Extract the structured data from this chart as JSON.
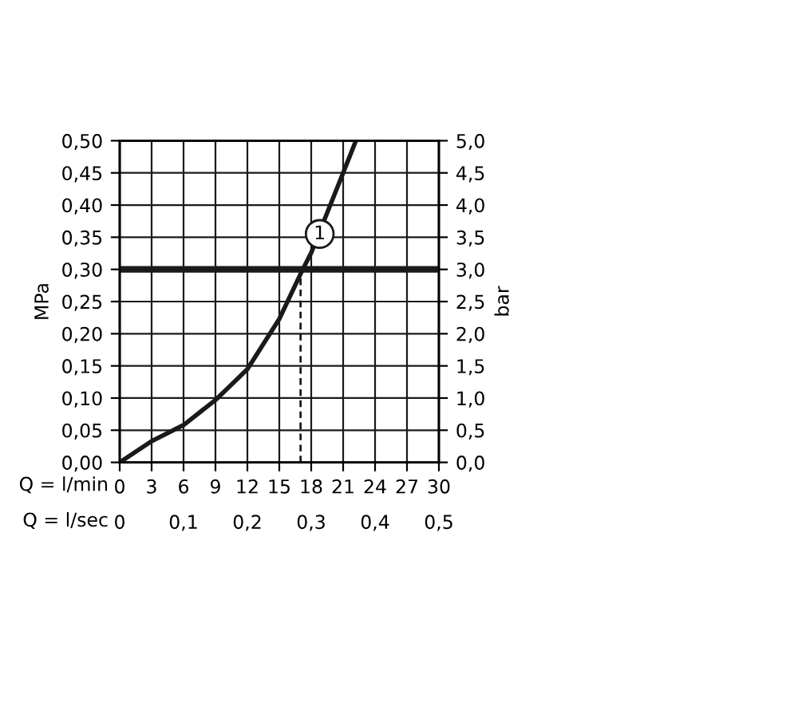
{
  "chart_data": {
    "type": "line",
    "xlabel": "Q = l/min",
    "x2label": "Q = l/sec",
    "ylabel": "MPa",
    "y2label": "bar",
    "series": [
      {
        "color": "#1a1a1a",
        "x": [
          0,
          3,
          6,
          9,
          12,
          15,
          17,
          18,
          21,
          22.2
        ],
        "values": [
          0,
          0.033,
          0.058,
          0.097,
          0.145,
          0.223,
          0.293,
          0.326,
          0.45,
          0.5
        ],
        "line_style": "solid"
      },
      {
        "color": "#1a1a1a",
        "x": [
          17,
          17
        ],
        "values": [
          0,
          0.3
        ],
        "line_style": "dashed"
      }
    ],
    "xlim": [
      0,
      30
    ],
    "xticks": [
      0,
      3,
      6,
      9,
      12,
      15,
      18,
      21,
      24,
      27,
      30
    ],
    "x2lim": [
      0,
      0.5
    ],
    "x2ticks": [
      0,
      {
        "value": 0.1,
        "label": "0,1"
      },
      {
        "value": 0.2,
        "label": "0,2"
      },
      {
        "value": 0.3,
        "label": "0,3"
      },
      {
        "value": 0.4,
        "label": "0,4"
      },
      {
        "value": 0.5,
        "label": "0,5"
      }
    ],
    "ylim": [
      0,
      0.5
    ],
    "yticks": [
      {
        "value": 0,
        "label": "0,00"
      },
      {
        "value": 0.05,
        "label": "0,05"
      },
      {
        "value": 0.1,
        "label": "0,10"
      },
      {
        "value": 0.15,
        "label": "0,15"
      },
      {
        "value": 0.2,
        "label": "0,20"
      },
      {
        "value": 0.25,
        "label": "0,25"
      },
      {
        "value": 0.3,
        "label": "0,30"
      },
      {
        "value": 0.35,
        "label": "0,35"
      },
      {
        "value": 0.4,
        "label": "0,40"
      },
      {
        "value": 0.45,
        "label": "0,45"
      },
      {
        "value": 0.5,
        "label": "0,50"
      }
    ],
    "y2lim": [
      0,
      5
    ],
    "y2ticks": [
      {
        "value": 0,
        "label": "0,0"
      },
      {
        "value": 0.5,
        "label": "0,5"
      },
      {
        "value": 1,
        "label": "1,0"
      },
      {
        "value": 1.5,
        "label": "1,5"
      },
      {
        "value": 2,
        "label": "2,0"
      },
      {
        "value": 2.5,
        "label": "2,5"
      },
      {
        "value": 3,
        "label": "3,0"
      },
      {
        "value": 3.5,
        "label": "3,5"
      },
      {
        "value": 4,
        "label": "4,0"
      },
      {
        "value": 4.5,
        "label": "4,5"
      },
      {
        "value": 5,
        "label": "5,0"
      }
    ],
    "ref_lines": [
      {
        "axis": "y",
        "value": 0.3,
        "color": "#1a1a1a"
      }
    ],
    "annotations": [
      {
        "text": "1",
        "x": 18.8,
        "y": 0.355
      }
    ],
    "grid": true,
    "legend": false,
    "marker": "none"
  }
}
